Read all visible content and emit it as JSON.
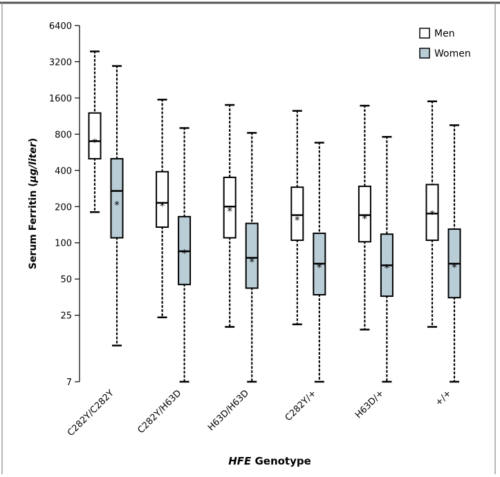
{
  "chart_data": {
    "type": "boxplot",
    "title": "",
    "xlabel_italic": "HFE",
    "xlabel_rest": " Genotype",
    "ylabel_main": "Serum Ferritin (",
    "ylabel_unit": "μg/liter",
    "ylabel_close": ")",
    "y_scale": "log",
    "ylim": [
      7,
      6400
    ],
    "y_ticks": [
      7,
      25,
      50,
      100,
      200,
      400,
      800,
      1600,
      3200,
      6400
    ],
    "y_tick_labels": [
      "7",
      "25",
      "50",
      "100",
      "200",
      "400",
      "800",
      "1600",
      "3200",
      "6400"
    ],
    "categories": [
      "C282Y/C282Y",
      "C282Y/H63D",
      "H63D/H63D",
      "C282Y/+",
      "H63D/+",
      "+/+"
    ],
    "legend": {
      "position": "top-right",
      "entries": [
        {
          "label": "Men",
          "color": "#ffffff"
        },
        {
          "label": "Women",
          "color": "#b9cdd6"
        }
      ]
    },
    "series": [
      {
        "name": "Men",
        "color": "#ffffff",
        "boxes": [
          {
            "min": 180,
            "q1": 500,
            "median": 700,
            "q3": 1200,
            "max": 3900,
            "mean": 710
          },
          {
            "min": 24,
            "q1": 135,
            "median": 215,
            "q3": 390,
            "max": 1550,
            "mean": 210
          },
          {
            "min": 20,
            "q1": 110,
            "median": 200,
            "q3": 350,
            "max": 1400,
            "mean": 190
          },
          {
            "min": 21,
            "q1": 105,
            "median": 170,
            "q3": 290,
            "max": 1250,
            "mean": 160
          },
          {
            "min": 19,
            "q1": 102,
            "median": 170,
            "q3": 295,
            "max": 1380,
            "mean": 165
          },
          {
            "min": 20,
            "q1": 105,
            "median": 175,
            "q3": 305,
            "max": 1500,
            "mean": 180
          }
        ]
      },
      {
        "name": "Women",
        "color": "#b9cdd6",
        "boxes": [
          {
            "min": 14,
            "q1": 110,
            "median": 270,
            "q3": 500,
            "max": 2950,
            "mean": 215
          },
          {
            "min": 7,
            "q1": 45,
            "median": 85,
            "q3": 165,
            "max": 900,
            "mean": 85
          },
          {
            "min": 7,
            "q1": 42,
            "median": 75,
            "q3": 145,
            "max": 820,
            "mean": 72
          },
          {
            "min": 7,
            "q1": 37,
            "median": 67,
            "q3": 120,
            "max": 680,
            "mean": 65
          },
          {
            "min": 7,
            "q1": 36,
            "median": 65,
            "q3": 118,
            "max": 760,
            "mean": 64
          },
          {
            "min": 7,
            "q1": 35,
            "median": 67,
            "q3": 130,
            "max": 950,
            "mean": 65
          }
        ]
      }
    ]
  }
}
